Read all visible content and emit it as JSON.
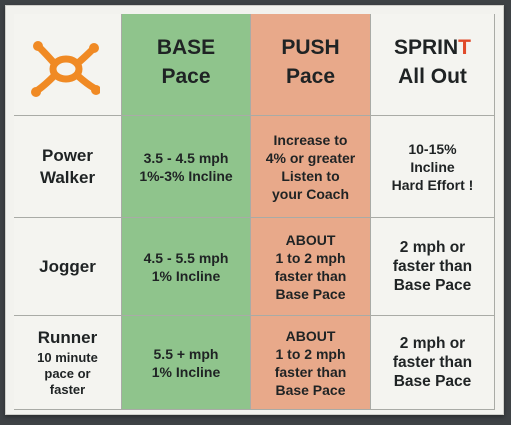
{
  "colors": {
    "base_green": "#8fc48c",
    "push_peach": "#e8a98a",
    "logo_orange": "#f08a24",
    "sprint_accent": "#e04a2a"
  },
  "logo": {
    "icon": "orangetheory-logo-icon"
  },
  "header": {
    "base": [
      "BASE",
      "Pace"
    ],
    "push": [
      "PUSH",
      "Pace"
    ],
    "sprint_main": "SPRIN",
    "sprint_accent": "T",
    "sprint_line2": "All Out"
  },
  "rows": [
    {
      "title": [
        "Power",
        "Walker"
      ],
      "subtitle": [],
      "base": [
        "3.5 - 4.5 mph",
        "1%-3% Incline"
      ],
      "push": [
        "Increase to",
        "4% or greater",
        "Listen to",
        "your Coach"
      ],
      "sprint": [
        "10-15%",
        "Incline",
        "Hard Effort !"
      ]
    },
    {
      "title": [
        "Jogger"
      ],
      "subtitle": [],
      "base": [
        "4.5 - 5.5 mph",
        "1% Incline"
      ],
      "push": [
        "ABOUT",
        "1 to 2 mph",
        "faster than",
        "Base Pace"
      ],
      "sprint": [
        "2 mph or",
        "faster than",
        "Base Pace"
      ]
    },
    {
      "title": [
        "Runner"
      ],
      "subtitle": [
        "10 minute",
        "pace or",
        "faster"
      ],
      "base": [
        "5.5 + mph",
        "1% Incline"
      ],
      "push": [
        "ABOUT",
        "1 to 2 mph",
        "faster than",
        "Base Pace"
      ],
      "sprint": [
        "2 mph or",
        "faster than",
        "Base Pace"
      ]
    }
  ]
}
